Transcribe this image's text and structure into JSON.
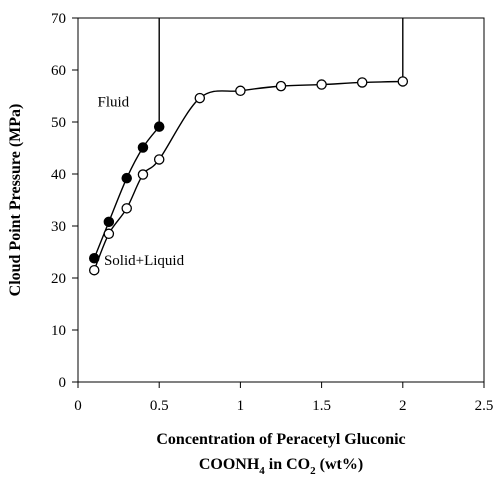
{
  "chart_data": {
    "type": "scatter",
    "title": "",
    "xlabel_line1": "Concentration of Peracetyl Gluconic",
    "xlabel_line2": "COONH",
    "xlabel_sub1": "4",
    "xlabel_mid": " in CO",
    "xlabel_sub2": "2",
    "xlabel_end": " (wt%)",
    "ylabel": "Cloud Point Pressure (MPa)",
    "xlim": [
      0,
      2.5
    ],
    "ylim": [
      0,
      70
    ],
    "x_ticks": [
      "0",
      "0.5",
      "1",
      "1.5",
      "2",
      "2.5"
    ],
    "y_ticks": [
      "0",
      "10",
      "20",
      "30",
      "40",
      "50",
      "60",
      "70"
    ],
    "grid": false,
    "legend": "none",
    "annotations": [
      {
        "text": "Fluid",
        "x": 0.12,
        "y": 53
      },
      {
        "text": "Solid+Liquid",
        "x": 0.16,
        "y": 22.5
      }
    ],
    "series": [
      {
        "marker": "filled-circle",
        "x": [
          0.1,
          0.19,
          0.3,
          0.4,
          0.5
        ],
        "y": [
          23.8,
          30.8,
          39.2,
          45.1,
          49.1
        ],
        "vertical_to_top_from": {
          "x": 0.5,
          "y": 49.1
        }
      },
      {
        "marker": "open-circle",
        "x": [
          0.1,
          0.19,
          0.3,
          0.4,
          0.5,
          0.75,
          1.0,
          1.25,
          1.5,
          1.75,
          2.0
        ],
        "y": [
          21.5,
          28.5,
          33.4,
          39.9,
          42.8,
          54.6,
          56.0,
          56.9,
          57.2,
          57.6,
          57.8
        ],
        "vertical_to_top_from": {
          "x": 2.0,
          "y": 57.8
        }
      }
    ]
  }
}
